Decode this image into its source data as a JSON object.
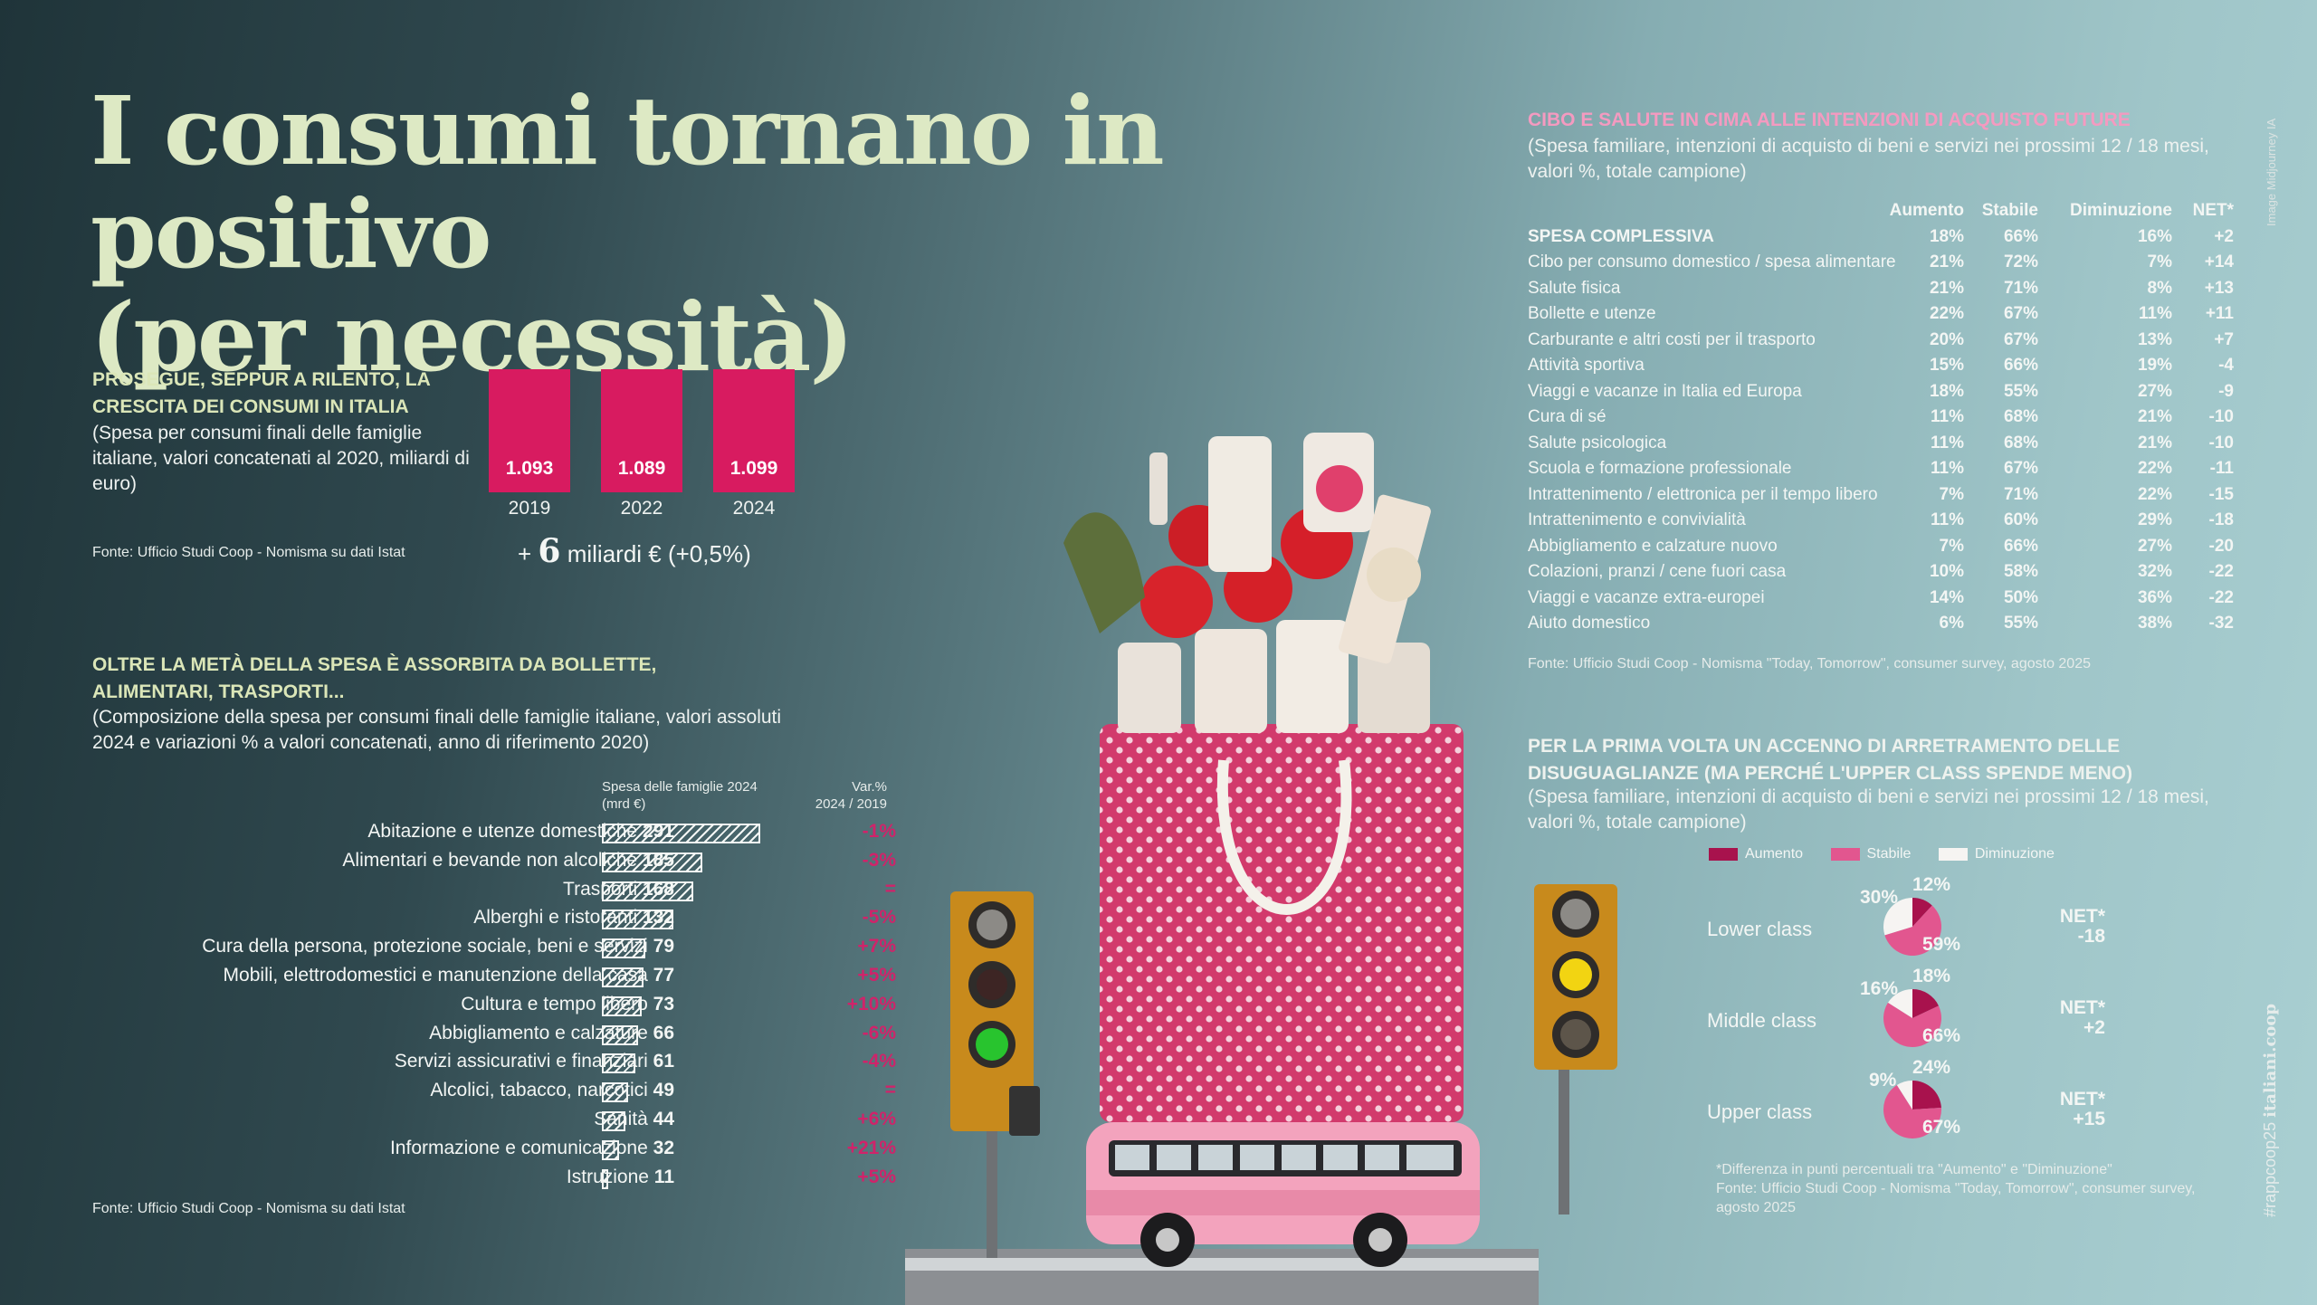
{
  "title": {
    "line1": "I consumi tornano in positivo",
    "line2": "(per necessità)"
  },
  "section1": {
    "heading": "PROSEGUE, SEPPUR A RILENTO, LA CRESCITA DEI CONSUMI IN ITALIA",
    "subtitle": "(Spesa per consumi finali delle famiglie italiane, valori concatenati al 2020, miliardi di euro)",
    "source": "Fonte: Ufficio Studi Coop - Nomisma su dati Istat",
    "delta_plus": "+",
    "delta_big": "6",
    "delta_text": "miliardi € (+0,5%)"
  },
  "section2": {
    "heading": "OLTRE LA METÀ DELLA SPESA È ASSORBITA DA BOLLETTE, ALIMENTARI, TRASPORTI...",
    "subtitle": "(Composizione della spesa per consumi finali delle famiglie italiane, valori assoluti 2024 e variazioni % a valori concatenati, anno di riferimento 2020)",
    "col_spesa_1": "Spesa delle famiglie 2024",
    "col_spesa_2": "(mrd €)",
    "col_var_1": "Var.%",
    "col_var_2": "2024 / 2019",
    "source": "Fonte: Ufficio Studi Coop - Nomisma su dati Istat"
  },
  "section3": {
    "heading": "CIBO E SALUTE IN CIMA ALLE INTENZIONI DI ACQUISTO FUTURE",
    "subtitle": "(Spesa familiare,  intenzioni di acquisto di beni e servizi nei prossimi 12 / 18 mesi, valori %, totale campione)",
    "col_headers": [
      "Aumento",
      "Stabile",
      "Diminuzione",
      "NET*"
    ],
    "source": "Fonte: Ufficio Studi Coop - Nomisma \"Today, Tomorrow\", consumer survey, agosto 2025"
  },
  "section4": {
    "heading": "PER LA PRIMA VOLTA UN ACCENNO DI ARRETRAMENTO DELLE DISUGUAGLIANZE (MA PERCHÉ L'UPPER CLASS SPENDE MENO)",
    "subtitle": "(Spesa familiare, intenzioni di acquisto di beni e servizi nei prossimi 12 / 18 mesi, valori %, totale campione)",
    "legend": [
      "Aumento",
      "Stabile",
      "Diminuzione"
    ],
    "net_label": "NET*",
    "footnote1": "*Differenza in punti percentuali tra \"Aumento\" e \"Diminuzione\"",
    "footnote2": "Fonte: Ufficio Studi Coop - Nomisma \"Today, Tomorrow\", consumer survey, agosto 2025"
  },
  "credit": "Image Midjourney IA",
  "hashtag_a": "#rappcoop25",
  "hashtag_b": "italiani.coop",
  "colors": {
    "accent": "#d81b60",
    "title": "#dde9c4",
    "pink_head": "#f49ac0",
    "mid_pink": "#e2568f",
    "dark_pink": "#a8124d"
  },
  "chart_data": [
    {
      "type": "bar",
      "title": "PROSEGUE, SEPPUR A RILENTO, LA CRESCITA DEI CONSUMI IN ITALIA",
      "categories": [
        "2019",
        "2022",
        "2024"
      ],
      "values": [
        1093,
        1089,
        1099
      ],
      "value_labels": [
        "1.093",
        "1.089",
        "1.099"
      ]
    },
    {
      "type": "bar",
      "title": "OLTRE LA METÀ DELLA SPESA È ASSORBITA DA BOLLETTE, ALIMENTARI, TRASPORTI...",
      "orientation": "horizontal",
      "categories": [
        "Abitazione e utenze domestiche",
        "Alimentari e bevande non alcoliche",
        "Trasporti",
        "Alberghi e ristoranti",
        "Cura della persona, protezione sociale, beni e servizi",
        "Mobili, elettrodomestici e manutenzione della casa",
        "Cultura e tempo libero",
        "Abbigliamento e calzature",
        "Servizi assicurativi e finanziari",
        "Alcolici, tabacco, narcotici",
        "Sanità",
        "Informazione e comunicazione",
        "Istruzione"
      ],
      "values": [
        291,
        185,
        168,
        132,
        79,
        77,
        73,
        66,
        61,
        49,
        44,
        32,
        11
      ],
      "variations": [
        "-1%",
        "-3%",
        "=",
        "-5%",
        "+7%",
        "+5%",
        "+10%",
        "-6%",
        "-4%",
        "=",
        "+6%",
        "+21%",
        "+5%"
      ]
    },
    {
      "type": "table",
      "title": "CIBO E SALUTE IN CIMA ALLE INTENZIONI DI ACQUISTO FUTURE",
      "columns": [
        "Aumento",
        "Stabile",
        "Diminuzione",
        "NET*"
      ],
      "rows": [
        {
          "label": "SPESA COMPLESSIVA",
          "values": [
            "18%",
            "66%",
            "16%",
            "+2"
          ]
        },
        {
          "label": "Cibo per consumo domestico / spesa alimentare",
          "values": [
            "21%",
            "72%",
            "7%",
            "+14"
          ]
        },
        {
          "label": "Salute fisica",
          "values": [
            "21%",
            "71%",
            "8%",
            "+13"
          ]
        },
        {
          "label": "Bollette e utenze",
          "values": [
            "22%",
            "67%",
            "11%",
            "+11"
          ]
        },
        {
          "label": "Carburante e altri costi per il trasporto",
          "values": [
            "20%",
            "67%",
            "13%",
            "+7"
          ]
        },
        {
          "label": "Attività sportiva",
          "values": [
            "15%",
            "66%",
            "19%",
            "-4"
          ]
        },
        {
          "label": "Viaggi e vacanze in Italia ed Europa",
          "values": [
            "18%",
            "55%",
            "27%",
            "-9"
          ]
        },
        {
          "label": "Cura di sé",
          "values": [
            "11%",
            "68%",
            "21%",
            "-10"
          ]
        },
        {
          "label": "Salute psicologica",
          "values": [
            "11%",
            "68%",
            "21%",
            "-10"
          ]
        },
        {
          "label": "Scuola e formazione professionale",
          "values": [
            "11%",
            "67%",
            "22%",
            "-11"
          ]
        },
        {
          "label": "Intrattenimento / elettronica per il tempo libero",
          "values": [
            "7%",
            "71%",
            "22%",
            "-15"
          ]
        },
        {
          "label": "Intrattenimento e convivialità",
          "values": [
            "11%",
            "60%",
            "29%",
            "-18"
          ]
        },
        {
          "label": "Abbigliamento e calzature nuovo",
          "values": [
            "7%",
            "66%",
            "27%",
            "-20"
          ]
        },
        {
          "label": "Colazioni, pranzi / cene fuori casa",
          "values": [
            "10%",
            "58%",
            "32%",
            "-22"
          ]
        },
        {
          "label": "Viaggi e vacanze extra-europei",
          "values": [
            "14%",
            "50%",
            "36%",
            "-22"
          ]
        },
        {
          "label": "Aiuto domestico",
          "values": [
            "6%",
            "55%",
            "38%",
            "-32"
          ]
        }
      ]
    },
    {
      "type": "pie",
      "title": "PER LA PRIMA VOLTA UN ACCENNO DI ARRETRAMENTO DELLE DISUGUAGLIANZE (MA PERCHÉ L'UPPER CLASS SPENDE MENO)",
      "series_names": [
        "Aumento",
        "Stabile",
        "Diminuzione"
      ],
      "pies": [
        {
          "label": "Lower class",
          "aumento": 12,
          "stabile": 59,
          "diminuzione": 30,
          "net": "-18"
        },
        {
          "label": "Middle class",
          "aumento": 18,
          "stabile": 66,
          "diminuzione": 16,
          "net": "+2"
        },
        {
          "label": "Upper class",
          "aumento": 24,
          "stabile": 67,
          "diminuzione": 9,
          "net": "+15"
        }
      ]
    }
  ]
}
